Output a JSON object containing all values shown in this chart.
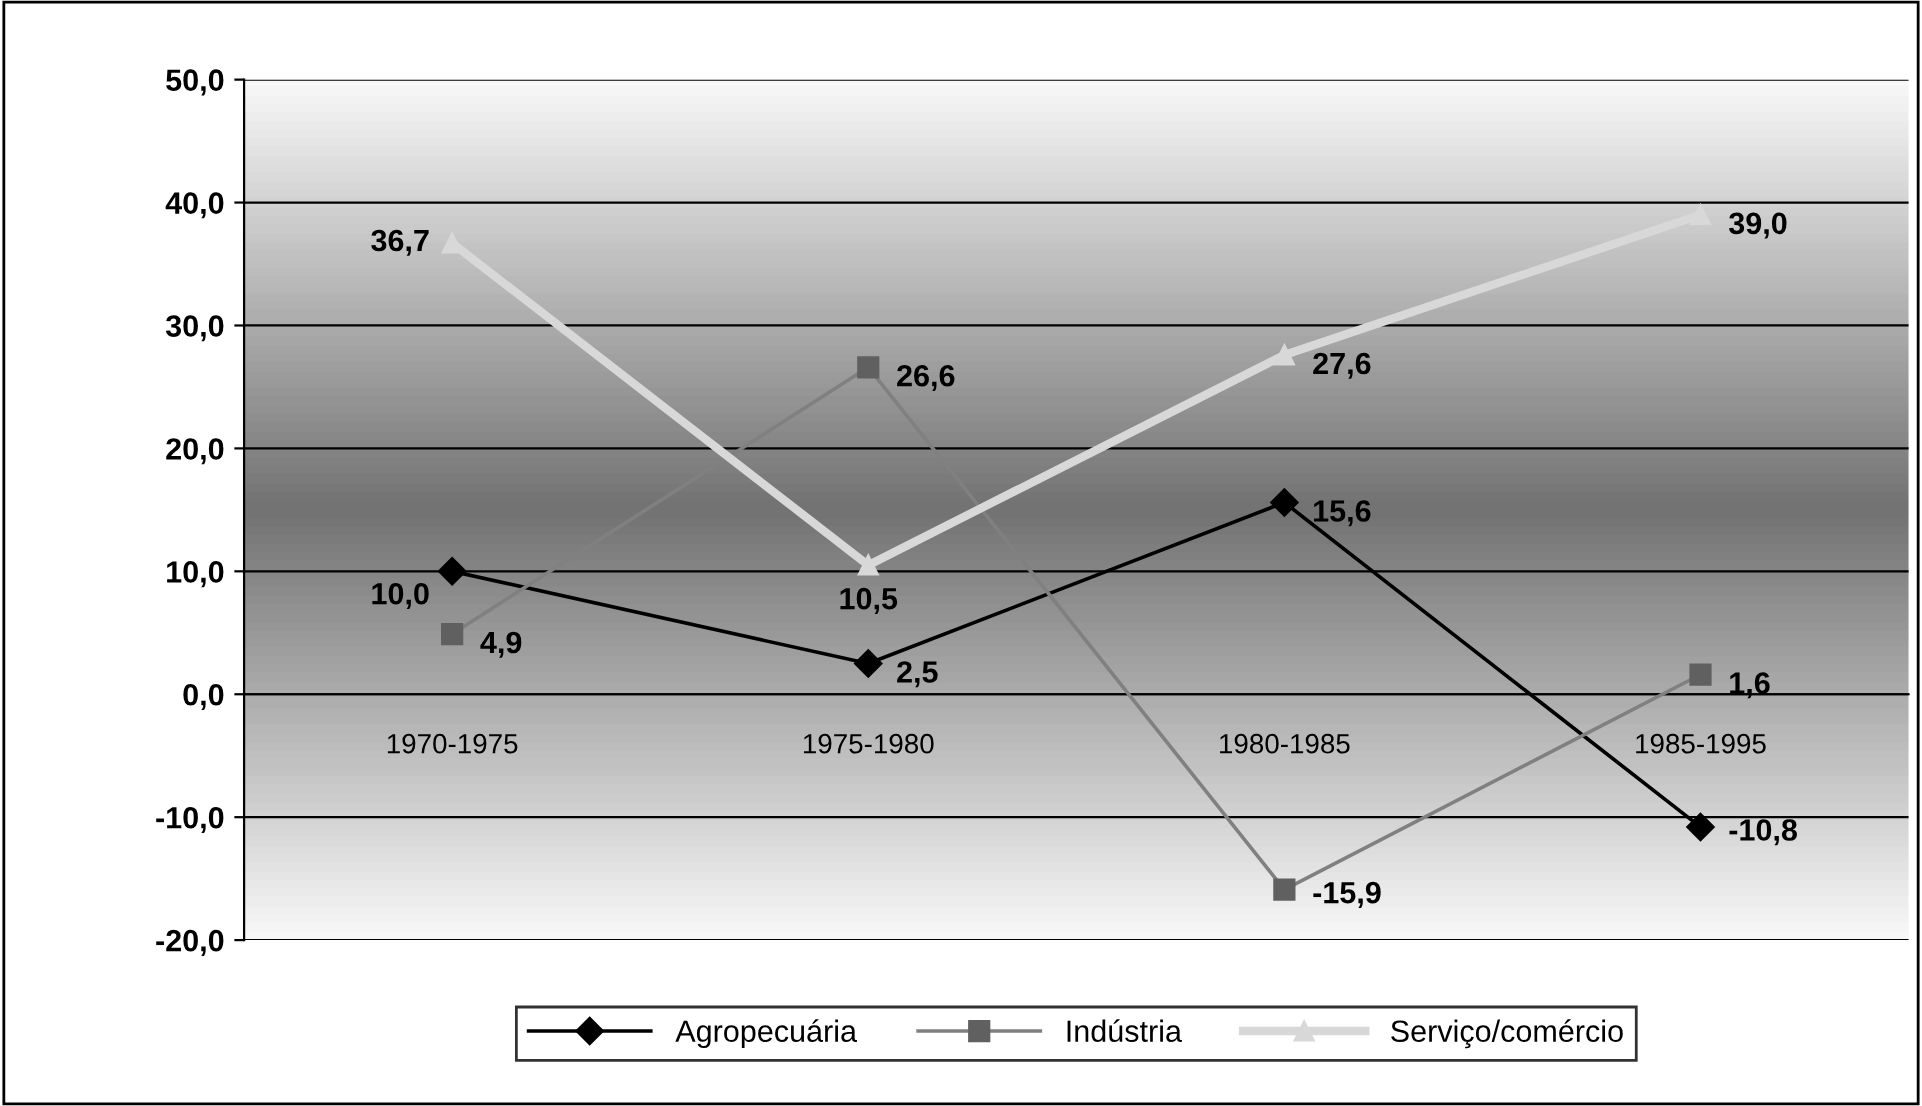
{
  "chart_data": {
    "type": "line",
    "categories": [
      "1970-1975",
      "1975-1980",
      "1980-1985",
      "1985-1995"
    ],
    "series": [
      {
        "name": "Agropecuária",
        "color": "#000000",
        "marker": "diamond",
        "values": [
          10.0,
          2.5,
          15.6,
          -10.8
        ],
        "value_labels": [
          "10,0",
          "2,5",
          "15,6",
          "-10,8"
        ]
      },
      {
        "name": "Indústria",
        "color": "#808080",
        "marker": "square",
        "values": [
          4.9,
          26.6,
          -15.9,
          1.6
        ],
        "value_labels": [
          "4,9",
          "26,6",
          "-15,9",
          "1,6"
        ]
      },
      {
        "name": "Serviço/comércio",
        "color": "#d8d8d8",
        "marker": "triangle",
        "values": [
          36.7,
          10.5,
          27.6,
          39.0
        ],
        "value_labels": [
          "36,7",
          "10,5",
          "27,6",
          "39,0"
        ]
      }
    ],
    "ylim": [
      -20,
      50
    ],
    "yticks": [
      {
        "value": -20,
        "label": "-20,0"
      },
      {
        "value": -10,
        "label": "-10,0"
      },
      {
        "value": 0,
        "label": "0,0"
      },
      {
        "value": 10,
        "label": "10,0"
      },
      {
        "value": 20,
        "label": "20,0"
      },
      {
        "value": 30,
        "label": "30,0"
      },
      {
        "value": 40,
        "label": "40,0"
      },
      {
        "value": 50,
        "label": "50,0"
      }
    ],
    "grid": "y",
    "legend": "bottom",
    "line_style": "solid"
  }
}
